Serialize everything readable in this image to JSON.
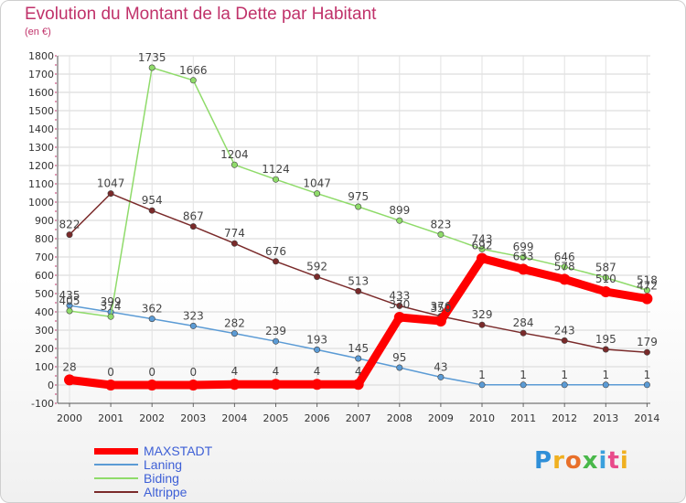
{
  "chart_data": {
    "type": "line",
    "title": "Evolution du Montant de la Dette par Habitant",
    "ylabel": "(en €)",
    "xlabel": "",
    "ylim": [
      -100,
      1800
    ],
    "yticks": [
      -100,
      0,
      100,
      200,
      300,
      400,
      500,
      600,
      700,
      800,
      900,
      1000,
      1100,
      1200,
      1300,
      1400,
      1500,
      1600,
      1700,
      1800
    ],
    "categories": [
      "2000",
      "2001",
      "2002",
      "2003",
      "2004",
      "2005",
      "2006",
      "2007",
      "2008",
      "2009",
      "2010",
      "2011",
      "2012",
      "2013",
      "2014"
    ],
    "grid": true,
    "legend_position": "bottom-left",
    "series": [
      {
        "name": "MAXSTADT",
        "color": "#ff0000",
        "emphasis": true,
        "values": [
          28,
          0,
          0,
          0,
          4,
          4,
          4,
          4,
          370,
          350,
          692,
          633,
          578,
          510,
          472
        ],
        "labels": [
          "28",
          "0",
          "0",
          "0",
          "4",
          "4",
          "4",
          "4",
          "370",
          "350",
          "692",
          "633",
          "578",
          "510",
          "472"
        ]
      },
      {
        "name": "Laning",
        "color": "#5b9bd5",
        "emphasis": false,
        "values": [
          435,
          399,
          362,
          323,
          282,
          239,
          193,
          145,
          95,
          43,
          1,
          1,
          1,
          1,
          1
        ],
        "labels": [
          "435",
          "399",
          "362",
          "323",
          "282",
          "239",
          "193",
          "145",
          "95",
          "43",
          "1",
          "1",
          "1",
          "1",
          "1"
        ]
      },
      {
        "name": "Biding",
        "color": "#8fdb6a",
        "emphasis": false,
        "values": [
          405,
          374,
          1735,
          1666,
          1204,
          1124,
          1047,
          975,
          899,
          823,
          743,
          699,
          646,
          587,
          518
        ],
        "labels": [
          "405",
          "374",
          "1735",
          "1666",
          "1204",
          "1124",
          "1047",
          "975",
          "899",
          "823",
          "743",
          "699",
          "646",
          "587",
          "518"
        ]
      },
      {
        "name": "Altrippe",
        "color": "#7a2a2a",
        "emphasis": false,
        "values": [
          822,
          1047,
          954,
          867,
          774,
          676,
          592,
          513,
          433,
          376,
          329,
          284,
          243,
          195,
          179
        ],
        "labels": [
          "822",
          "1047",
          "954",
          "867",
          "774",
          "676",
          "592",
          "513",
          "433",
          "376",
          "329",
          "284",
          "243",
          "195",
          "179"
        ]
      }
    ]
  },
  "legend": {
    "items": [
      "MAXSTADT",
      "Laning",
      "Biding",
      "Altrippe"
    ]
  },
  "logo": {
    "p": "P",
    "r": "r",
    "o": "o",
    "x": "x",
    "i": "i",
    "t": "t",
    "i2": "i"
  }
}
